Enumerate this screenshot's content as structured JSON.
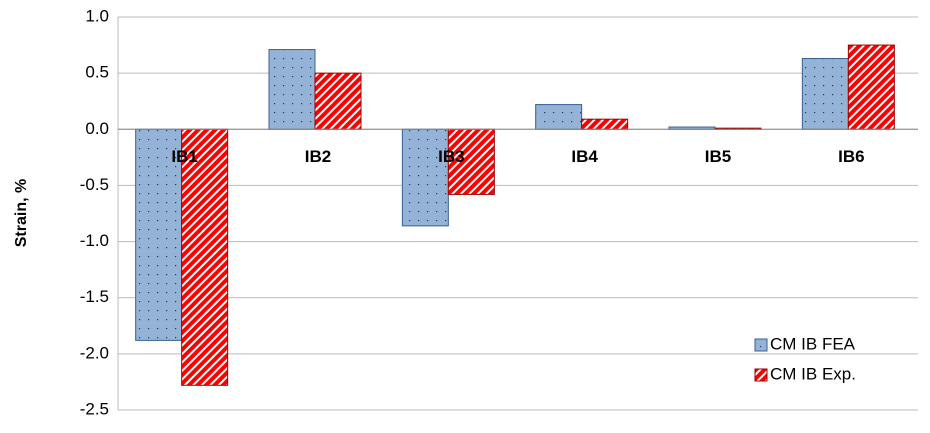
{
  "chart_data": {
    "type": "bar",
    "y_label": "Strain, %",
    "categories": [
      "IB1",
      "IB2",
      "IB3",
      "IB4",
      "IB5",
      "IB6"
    ],
    "series": [
      {
        "name": "CM IB FEA",
        "color": "#95b3d7",
        "values": [
          -1.88,
          0.71,
          -0.86,
          0.22,
          0.02,
          0.63
        ]
      },
      {
        "name": "CM IB Exp.",
        "color": "#ff0000",
        "values": [
          -2.28,
          0.5,
          -0.58,
          0.09,
          0.01,
          0.75
        ]
      }
    ],
    "ylim": [
      -2.5,
      1.0
    ],
    "yticks": [
      {
        "value": -2.5,
        "label": "-2.5"
      },
      {
        "value": -2,
        "label": "-2.0"
      },
      -1.5,
      {
        "value": -1,
        "label": "-1.0"
      },
      -0.5,
      {
        "value": 0,
        "label": "0.0"
      },
      0.5,
      {
        "value": 1,
        "label": "1.0"
      }
    ],
    "grid": true,
    "legend": "lower right"
  }
}
